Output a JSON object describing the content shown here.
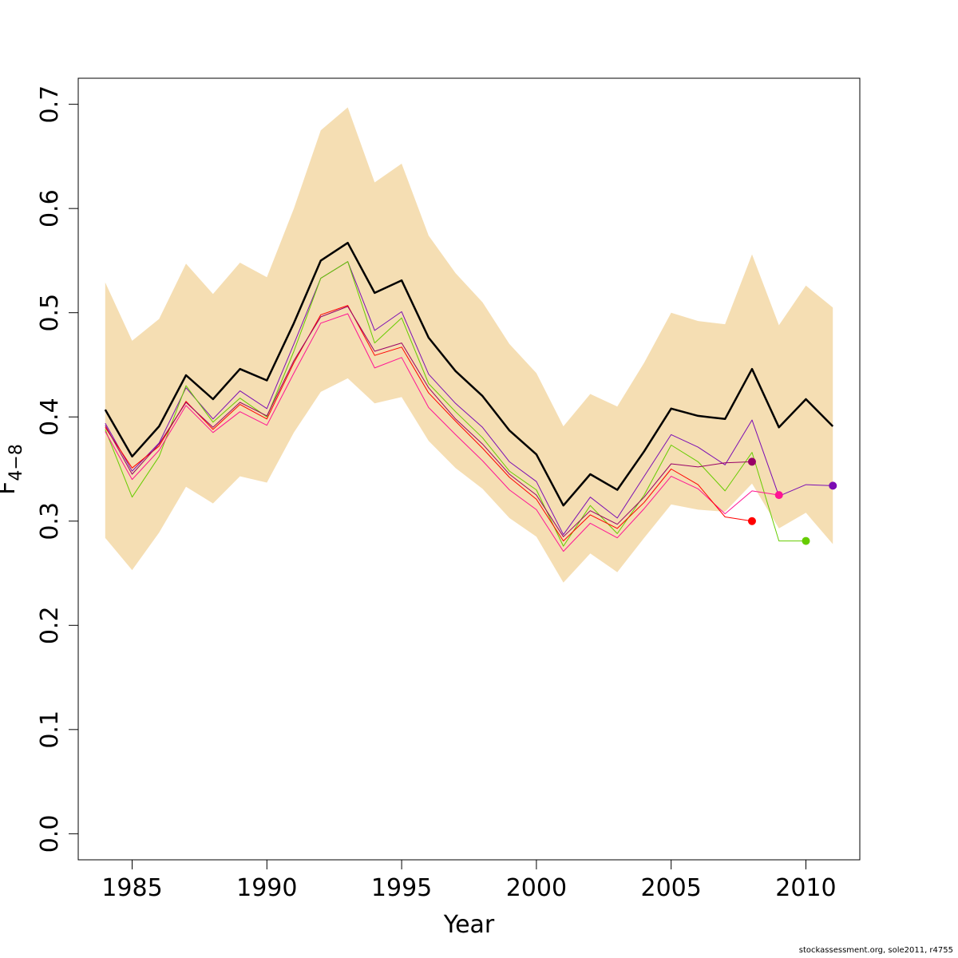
{
  "chart_data": {
    "type": "line",
    "xlabel": "Year",
    "ylabel_main": "F",
    "ylabel_sub": "4−8",
    "xlim": [
      1983,
      2012
    ],
    "ylim": [
      -0.025,
      0.725
    ],
    "xticks": [
      1985,
      1990,
      1995,
      2000,
      2005,
      2010
    ],
    "yticks": [
      0.0,
      0.1,
      0.2,
      0.3,
      0.4,
      0.5,
      0.6,
      0.7
    ],
    "ytick_labels": [
      "0.0",
      "0.1",
      "0.2",
      "0.3",
      "0.4",
      "0.5",
      "0.6",
      "0.7"
    ],
    "band": {
      "color": "#f5deb3",
      "x": [
        1984,
        1985,
        1986,
        1987,
        1988,
        1989,
        1990,
        1991,
        1992,
        1993,
        1994,
        1995,
        1996,
        1997,
        1998,
        1999,
        2000,
        2001,
        2002,
        2003,
        2004,
        2005,
        2006,
        2007,
        2008,
        2009,
        2010,
        2011
      ],
      "upper": [
        0.529,
        0.473,
        0.494,
        0.547,
        0.518,
        0.548,
        0.534,
        0.6,
        0.675,
        0.697,
        0.625,
        0.643,
        0.574,
        0.538,
        0.51,
        0.47,
        0.442,
        0.391,
        0.422,
        0.41,
        0.452,
        0.5,
        0.492,
        0.489,
        0.556,
        0.488,
        0.526,
        0.505
      ],
      "lower": [
        0.284,
        0.253,
        0.289,
        0.333,
        0.317,
        0.343,
        0.337,
        0.385,
        0.424,
        0.437,
        0.413,
        0.419,
        0.377,
        0.351,
        0.331,
        0.303,
        0.285,
        0.241,
        0.269,
        0.251,
        0.284,
        0.316,
        0.311,
        0.309,
        0.336,
        0.293,
        0.308,
        0.278
      ]
    },
    "series": [
      {
        "color": "#000000",
        "width": 2.5,
        "endpoint": false,
        "x": [
          1984,
          1985,
          1986,
          1987,
          1988,
          1989,
          1990,
          1991,
          1992,
          1993,
          1994,
          1995,
          1996,
          1997,
          1998,
          1999,
          2000,
          2001,
          2002,
          2003,
          2004,
          2005,
          2006,
          2007,
          2008,
          2009,
          2010,
          2011
        ],
        "values": [
          0.407,
          0.362,
          0.391,
          0.44,
          0.417,
          0.446,
          0.435,
          0.49,
          0.55,
          0.567,
          0.519,
          0.531,
          0.476,
          0.444,
          0.42,
          0.387,
          0.364,
          0.315,
          0.345,
          0.33,
          0.367,
          0.408,
          0.401,
          0.398,
          0.446,
          0.39,
          0.417,
          0.391
        ]
      },
      {
        "color": "#7b0db3",
        "width": 1,
        "endpoint": true,
        "x": [
          1984,
          1985,
          1986,
          1987,
          1988,
          1989,
          1990,
          1991,
          1992,
          1993,
          1994,
          1995,
          1996,
          1997,
          1998,
          1999,
          2000,
          2001,
          2002,
          2003,
          2004,
          2005,
          2006,
          2007,
          2008,
          2009,
          2010,
          2011
        ],
        "values": [
          0.394,
          0.348,
          0.375,
          0.428,
          0.398,
          0.425,
          0.408,
          0.47,
          0.533,
          0.549,
          0.483,
          0.501,
          0.441,
          0.413,
          0.39,
          0.357,
          0.338,
          0.287,
          0.323,
          0.303,
          0.343,
          0.383,
          0.371,
          0.354,
          0.397,
          0.324,
          0.335,
          0.334
        ]
      },
      {
        "color": "#66cc00",
        "width": 1,
        "endpoint": true,
        "x": [
          1984,
          1985,
          1986,
          1987,
          1988,
          1989,
          1990,
          1991,
          1992,
          1993,
          1994,
          1995,
          1996,
          1997,
          1998,
          1999,
          2000,
          2001,
          2002,
          2003,
          2004,
          2005,
          2006,
          2007,
          2008,
          2009,
          2010
        ],
        "values": [
          0.388,
          0.323,
          0.362,
          0.43,
          0.395,
          0.418,
          0.4,
          0.463,
          0.533,
          0.549,
          0.471,
          0.495,
          0.432,
          0.405,
          0.38,
          0.348,
          0.33,
          0.276,
          0.315,
          0.288,
          0.325,
          0.373,
          0.357,
          0.329,
          0.366,
          0.281,
          0.281
        ]
      },
      {
        "color": "#ff1493",
        "width": 1,
        "endpoint": true,
        "x": [
          1984,
          1985,
          1986,
          1987,
          1988,
          1989,
          1990,
          1991,
          1992,
          1993,
          1994,
          1995,
          1996,
          1997,
          1998,
          1999,
          2000,
          2001,
          2002,
          2003,
          2004,
          2005,
          2006,
          2007,
          2008,
          2009
        ],
        "values": [
          0.386,
          0.34,
          0.368,
          0.411,
          0.385,
          0.405,
          0.392,
          0.442,
          0.49,
          0.499,
          0.447,
          0.457,
          0.409,
          0.383,
          0.358,
          0.33,
          0.311,
          0.271,
          0.298,
          0.284,
          0.312,
          0.343,
          0.331,
          0.307,
          0.329,
          0.325
        ]
      },
      {
        "color": "#ff0000",
        "width": 1,
        "endpoint": true,
        "x": [
          1984,
          1985,
          1986,
          1987,
          1988,
          1989,
          1990,
          1991,
          1992,
          1993,
          1994,
          1995,
          1996,
          1997,
          1998,
          1999,
          2000,
          2001,
          2002,
          2003,
          2004,
          2005,
          2006,
          2007,
          2008
        ],
        "values": [
          0.39,
          0.351,
          0.372,
          0.415,
          0.388,
          0.412,
          0.398,
          0.452,
          0.498,
          0.507,
          0.459,
          0.467,
          0.423,
          0.396,
          0.37,
          0.342,
          0.321,
          0.281,
          0.306,
          0.293,
          0.318,
          0.35,
          0.335,
          0.304,
          0.3
        ]
      },
      {
        "color": "#990066",
        "width": 1,
        "endpoint": true,
        "x": [
          1984,
          1985,
          1986,
          1987,
          1988,
          1989,
          1990,
          1991,
          1992,
          1993,
          1994,
          1995,
          1996,
          1997,
          1998,
          1999,
          2000,
          2001,
          2002,
          2003,
          2004,
          2005,
          2006,
          2007,
          2008
        ],
        "values": [
          0.392,
          0.345,
          0.374,
          0.414,
          0.39,
          0.414,
          0.401,
          0.454,
          0.496,
          0.506,
          0.463,
          0.471,
          0.428,
          0.398,
          0.374,
          0.345,
          0.325,
          0.285,
          0.31,
          0.297,
          0.323,
          0.355,
          0.352,
          0.356,
          0.357
        ]
      }
    ]
  },
  "footer": "stockassessment.org, sole2011, r4755"
}
